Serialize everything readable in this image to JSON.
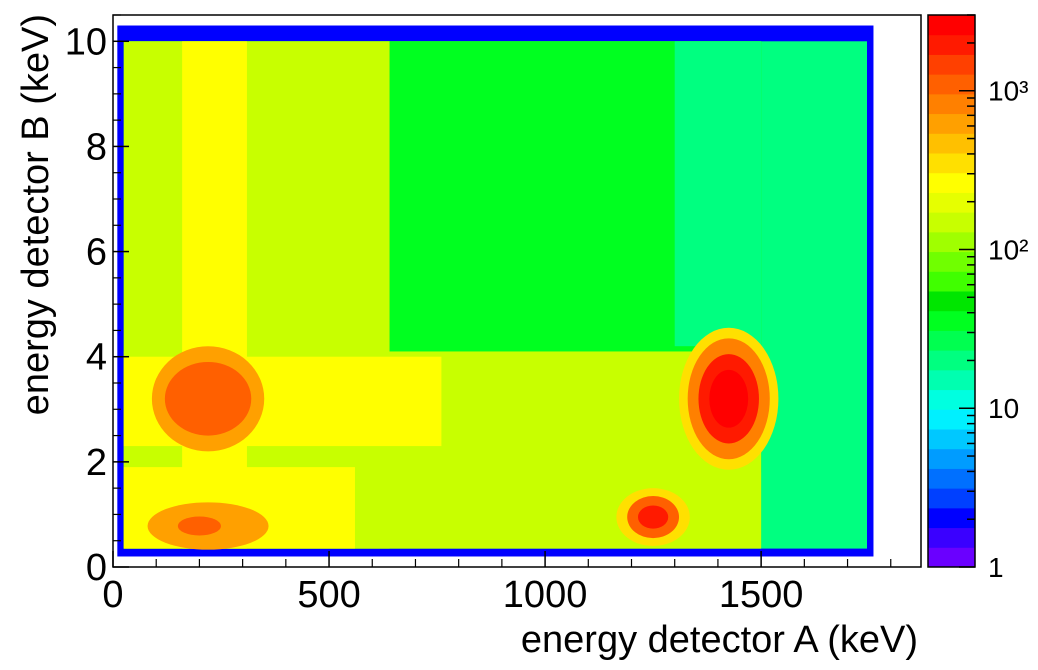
{
  "chart_data": {
    "type": "heatmap",
    "title": "",
    "xlabel": "energy detector A (keV)",
    "ylabel": "energy detector B (keV)",
    "xlim": [
      0,
      1870
    ],
    "ylim": [
      0,
      10.5
    ],
    "x_ticks": [
      0,
      500,
      1000,
      1500
    ],
    "x_tick_labels": [
      "0",
      "500",
      "1000",
      "1500"
    ],
    "y_ticks": [
      0,
      2,
      4,
      6,
      8,
      10
    ],
    "y_tick_labels": [
      "0",
      "2",
      "4",
      "6",
      "8",
      "10"
    ],
    "colorbar": {
      "scale": "log",
      "range": [
        1,
        3000
      ],
      "tick_values": [
        1,
        10,
        100,
        1000
      ],
      "tick_labels": [
        "1",
        "10",
        "10²",
        "10³"
      ],
      "colors": [
        "#6a00ff",
        "#3a00ff",
        "#0000ff",
        "#0040ff",
        "#0070ff",
        "#009cff",
        "#00c8ff",
        "#00f0ff",
        "#00ffe0",
        "#00ffb0",
        "#00ff80",
        "#00ff50",
        "#00ff20",
        "#00e600",
        "#40ff00",
        "#70ff00",
        "#a0ff00",
        "#c8ff00",
        "#e6ff00",
        "#ffff00",
        "#ffe000",
        "#ffc000",
        "#ffa000",
        "#ff8000",
        "#ff6000",
        "#ff4000",
        "#ff1a00",
        "#ff0000"
      ]
    },
    "regions": [
      {
        "shape": "rect",
        "x": [
          10,
          1760
        ],
        "y": [
          0.2,
          10.3
        ],
        "value": 2
      },
      {
        "shape": "rect",
        "x": [
          25,
          1745
        ],
        "y": [
          0.35,
          10.0
        ],
        "value": 20
      },
      {
        "shape": "rect",
        "x": [
          25,
          1500
        ],
        "y": [
          0.35,
          10.0
        ],
        "value": 60
      },
      {
        "shape": "rect",
        "x": [
          620,
          1500
        ],
        "y": [
          1.8,
          10.0
        ],
        "value": 40
      },
      {
        "shape": "rect",
        "x": [
          1300,
          1500
        ],
        "y": [
          4.2,
          10.0
        ],
        "value": 20
      },
      {
        "shape": "rect",
        "x": [
          25,
          640
        ],
        "y": [
          0.35,
          10.0
        ],
        "value": 130
      },
      {
        "shape": "rect",
        "x": [
          25,
          1500
        ],
        "y": [
          0.35,
          4.1
        ],
        "value": 130
      },
      {
        "shape": "rect",
        "x": [
          160,
          310
        ],
        "y": [
          0.35,
          10.0
        ],
        "value": 300
      },
      {
        "shape": "rect",
        "x": [
          25,
          760
        ],
        "y": [
          2.3,
          4.0
        ],
        "value": 300
      },
      {
        "shape": "rect",
        "x": [
          25,
          560
        ],
        "y": [
          0.35,
          1.9
        ],
        "value": 300
      },
      {
        "shape": "ellipse",
        "cx": 220,
        "cy": 3.2,
        "rx": 130,
        "ry": 1.0,
        "value": 600
      },
      {
        "shape": "ellipse",
        "cx": 220,
        "cy": 3.2,
        "rx": 100,
        "ry": 0.7,
        "value": 1000
      },
      {
        "shape": "ellipse",
        "cx": 220,
        "cy": 0.78,
        "rx": 140,
        "ry": 0.45,
        "value": 700
      },
      {
        "shape": "ellipse",
        "cx": 200,
        "cy": 0.78,
        "rx": 50,
        "ry": 0.18,
        "value": 1200
      },
      {
        "shape": "ellipse",
        "cx": 1425,
        "cy": 3.2,
        "rx": 115,
        "ry": 1.35,
        "value": 400
      },
      {
        "shape": "ellipse",
        "cx": 1425,
        "cy": 3.2,
        "rx": 95,
        "ry": 1.15,
        "value": 900
      },
      {
        "shape": "ellipse",
        "cx": 1425,
        "cy": 3.2,
        "rx": 70,
        "ry": 0.85,
        "value": 1700
      },
      {
        "shape": "ellipse",
        "cx": 1425,
        "cy": 3.2,
        "rx": 45,
        "ry": 0.55,
        "value": 2800
      },
      {
        "shape": "ellipse",
        "cx": 1250,
        "cy": 0.95,
        "rx": 85,
        "ry": 0.55,
        "value": 400
      },
      {
        "shape": "ellipse",
        "cx": 1250,
        "cy": 0.95,
        "rx": 60,
        "ry": 0.4,
        "value": 1000
      },
      {
        "shape": "ellipse",
        "cx": 1250,
        "cy": 0.95,
        "rx": 35,
        "ry": 0.22,
        "value": 2200
      }
    ]
  }
}
